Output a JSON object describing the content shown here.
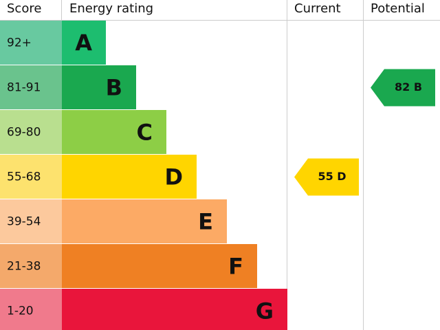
{
  "header": {
    "score": "Score",
    "rating": "Energy rating",
    "current": "Current",
    "potential": "Potential"
  },
  "rows": [
    {
      "score": "92+",
      "letter": "A",
      "color": "#1dbd6f",
      "score_color": "#68c9a0"
    },
    {
      "score": "81-91",
      "letter": "B",
      "color": "#1aa84f",
      "score_color": "#6ac38d",
      "potential": "82 B"
    },
    {
      "score": "69-80",
      "letter": "C",
      "color": "#8dce46",
      "score_color": "#b9df8f"
    },
    {
      "score": "55-68",
      "letter": "D",
      "color": "#ffd500",
      "score_color": "#fde26e",
      "current": "55 D"
    },
    {
      "score": "39-54",
      "letter": "E",
      "color": "#fcaa65",
      "score_color": "#fcc99d"
    },
    {
      "score": "21-38",
      "letter": "F",
      "color": "#ef8023",
      "score_color": "#f4a96b"
    },
    {
      "score": "1-20",
      "letter": "G",
      "color": "#e9153b",
      "score_color": "#f07a8c"
    }
  ]
}
